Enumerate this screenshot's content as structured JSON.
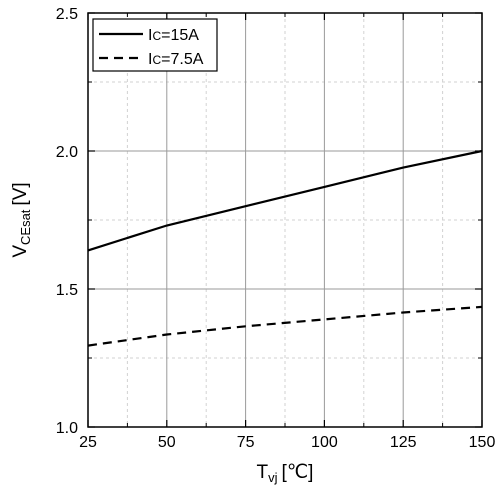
{
  "chart_data": {
    "type": "line",
    "x": [
      25,
      50,
      75,
      100,
      125,
      150
    ],
    "series": [
      {
        "name_main": "I",
        "name_sub": "C",
        "name_rest": "=15A",
        "style": "solid",
        "values": [
          1.64,
          1.73,
          1.8,
          1.87,
          1.94,
          2.0
        ]
      },
      {
        "name_main": "I",
        "name_sub": "C",
        "name_rest": "=7.5A",
        "style": "dashed",
        "values": [
          1.295,
          1.335,
          1.365,
          1.39,
          1.415,
          1.435
        ]
      }
    ],
    "xlim": [
      25,
      150
    ],
    "ylim": [
      1.0,
      2.5
    ],
    "x_ticks": [
      "25",
      "50",
      "75",
      "100",
      "125",
      "150"
    ],
    "y_ticks": [
      "1.0",
      "1.5",
      "2.0",
      "2.5"
    ],
    "xlabel": {
      "main": "T",
      "sub": "vj",
      "unit": "[℃]"
    },
    "ylabel": {
      "main": "V",
      "sub": "CEsat",
      "unit": "[V]"
    },
    "grid": {
      "major": true,
      "minor": true
    },
    "legend_position": "top-left",
    "colors": {
      "line": "#000000",
      "grid_major": "#9a9a9a",
      "grid_minor": "#d2d2d2"
    }
  }
}
